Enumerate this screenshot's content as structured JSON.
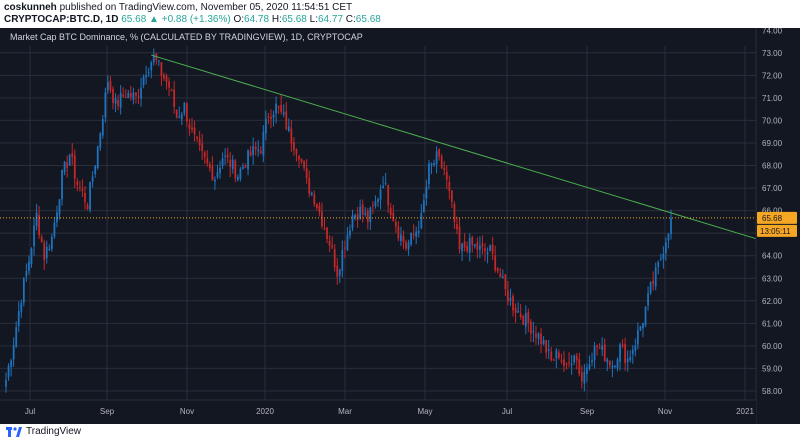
{
  "header": {
    "author": "coskunneh",
    "published": "published on TradingView.com, November 05, 2020 11:54:51 CET",
    "symbol": "CRYPTOCAP:BTC.D, 1D",
    "last": "65.68",
    "arrow": "▲",
    "change": "+0.88 (+1.36%)",
    "o_label": "O:",
    "o": "64.78",
    "h_label": "H:",
    "h": "65.68",
    "l_label": "L:",
    "l": "64.77",
    "c_label": "C:",
    "c": "65.68"
  },
  "chart_data": {
    "type": "candlestick",
    "title": "Market Cap BTC Dominance, % (CALCULATED BY TRADINGVIEW), 1D, CRYPTOCAP",
    "ylim": [
      57.6,
      74.1
    ],
    "y_ticks": [
      "58.00",
      "59.00",
      "60.00",
      "61.00",
      "62.00",
      "63.00",
      "64.00",
      "65.00",
      "66.00",
      "67.00",
      "68.00",
      "69.00",
      "70.00",
      "71.00",
      "72.00",
      "73.00",
      "74.00"
    ],
    "x_ticks": [
      "Jul",
      "Sep",
      "Nov",
      "2020",
      "Mar",
      "May",
      "Jul",
      "Sep",
      "Nov",
      "2021"
    ],
    "last_price_label": "65.68",
    "countdown_label": "13:05:11",
    "up_color": "#1e73be",
    "down_color": "#c62828",
    "trendline_color": "#4caf50",
    "trendline": [
      {
        "x": "Sep",
        "y": 72.9
      },
      {
        "x": "Nov 2020",
        "y": 65.9
      }
    ],
    "anchors": [
      [
        0,
        58.5
      ],
      [
        3,
        60.2
      ],
      [
        6,
        62.2
      ],
      [
        9,
        63.8
      ],
      [
        12,
        65.8
      ],
      [
        15,
        64.0
      ],
      [
        18,
        64.8
      ],
      [
        22,
        67.5
      ],
      [
        25,
        68.5
      ],
      [
        28,
        67.2
      ],
      [
        32,
        66.3
      ],
      [
        36,
        68.8
      ],
      [
        40,
        71.8
      ],
      [
        43,
        70.7
      ],
      [
        47,
        71.2
      ],
      [
        51,
        71.0
      ],
      [
        55,
        72.3
      ],
      [
        58,
        72.8
      ],
      [
        61,
        72.1
      ],
      [
        64,
        71.5
      ],
      [
        67,
        70.2
      ],
      [
        70,
        70.6
      ],
      [
        73,
        69.4
      ],
      [
        76,
        68.6
      ],
      [
        79,
        68.0
      ],
      [
        82,
        67.5
      ],
      [
        85,
        68.4
      ],
      [
        88,
        68.1
      ],
      [
        91,
        67.6
      ],
      [
        94,
        68.2
      ],
      [
        97,
        68.6
      ],
      [
        100,
        68.8
      ],
      [
        103,
        70.3
      ],
      [
        106,
        70.6
      ],
      [
        109,
        70.1
      ],
      [
        112,
        69.2
      ],
      [
        115,
        68.6
      ],
      [
        118,
        67.2
      ],
      [
        121,
        66.6
      ],
      [
        124,
        65.6
      ],
      [
        127,
        64.6
      ],
      [
        130,
        63.3
      ],
      [
        133,
        64.6
      ],
      [
        136,
        65.8
      ],
      [
        139,
        66.0
      ],
      [
        142,
        65.6
      ],
      [
        145,
        66.3
      ],
      [
        148,
        67.4
      ],
      [
        151,
        66.1
      ],
      [
        154,
        65.1
      ],
      [
        157,
        64.4
      ],
      [
        160,
        64.9
      ],
      [
        163,
        65.6
      ],
      [
        166,
        67.8
      ],
      [
        169,
        68.3
      ],
      [
        172,
        67.8
      ],
      [
        175,
        66.1
      ],
      [
        178,
        64.2
      ],
      [
        181,
        64.5
      ],
      [
        184,
        64.4
      ],
      [
        187,
        64.2
      ],
      [
        190,
        64.2
      ],
      [
        193,
        63.4
      ],
      [
        196,
        62.4
      ],
      [
        199,
        61.8
      ],
      [
        202,
        61.4
      ],
      [
        205,
        61.0
      ],
      [
        208,
        60.6
      ],
      [
        211,
        60.1
      ],
      [
        214,
        59.3
      ],
      [
        217,
        59.7
      ],
      [
        220,
        58.9
      ],
      [
        223,
        59.8
      ],
      [
        226,
        58.5
      ],
      [
        229,
        59.5
      ],
      [
        232,
        60.0
      ],
      [
        235,
        59.6
      ],
      [
        238,
        59.2
      ],
      [
        241,
        59.9
      ],
      [
        244,
        59.4
      ],
      [
        247,
        60.2
      ],
      [
        250,
        61.2
      ],
      [
        253,
        62.5
      ],
      [
        256,
        63.5
      ],
      [
        259,
        64.8
      ],
      [
        261,
        65.68
      ]
    ],
    "last_close": 65.68
  },
  "footer": {
    "brand": "TradingView"
  }
}
